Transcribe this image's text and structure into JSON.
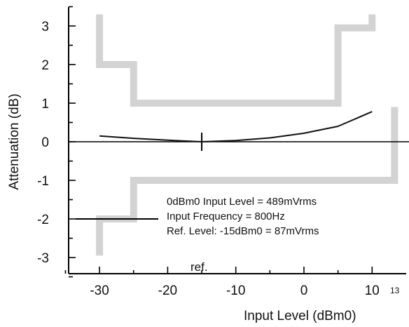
{
  "chart_data": {
    "type": "line",
    "xlabel": "Input Level (dBm0)",
    "ylabel": "Attenuation (dB)",
    "xlim": [
      -35,
      14
    ],
    "ylim": [
      -3.5,
      3.5
    ],
    "x_ticks": [
      -30,
      -20,
      -10,
      0,
      10
    ],
    "y_ticks": [
      3,
      2,
      1,
      0,
      -1,
      -2,
      -3
    ],
    "figure_number": "13",
    "curve": {
      "x": [
        -30,
        -25,
        -20,
        -15,
        -10,
        -5,
        0,
        5,
        10
      ],
      "y": [
        0.15,
        0.09,
        0.04,
        0.0,
        0.03,
        0.1,
        0.22,
        0.4,
        0.78
      ]
    },
    "upper_limit": {
      "x": [
        -30,
        -30,
        -25,
        -25,
        5,
        5,
        10,
        10
      ],
      "y": [
        3.3,
        2.0,
        2.0,
        1.0,
        1.0,
        2.95,
        2.95,
        3.3
      ]
    },
    "lower_limit": {
      "x": [
        -30,
        -30,
        -25,
        -25,
        13.3,
        13.3
      ],
      "y": [
        -2.95,
        -2.0,
        -2.0,
        -1.0,
        -1.0,
        0.9
      ]
    },
    "reference": {
      "x": -15,
      "label": "ref."
    },
    "notes": [
      "0dBm0 Input Level = 489mVrms",
      "Input Frequency = 800Hz",
      "Ref. Level: -15dBm0 = 87mVrms"
    ],
    "grid": false,
    "colors": {
      "curve": "#111111",
      "limit": "#d3d3d3",
      "axis": "#000000"
    }
  }
}
